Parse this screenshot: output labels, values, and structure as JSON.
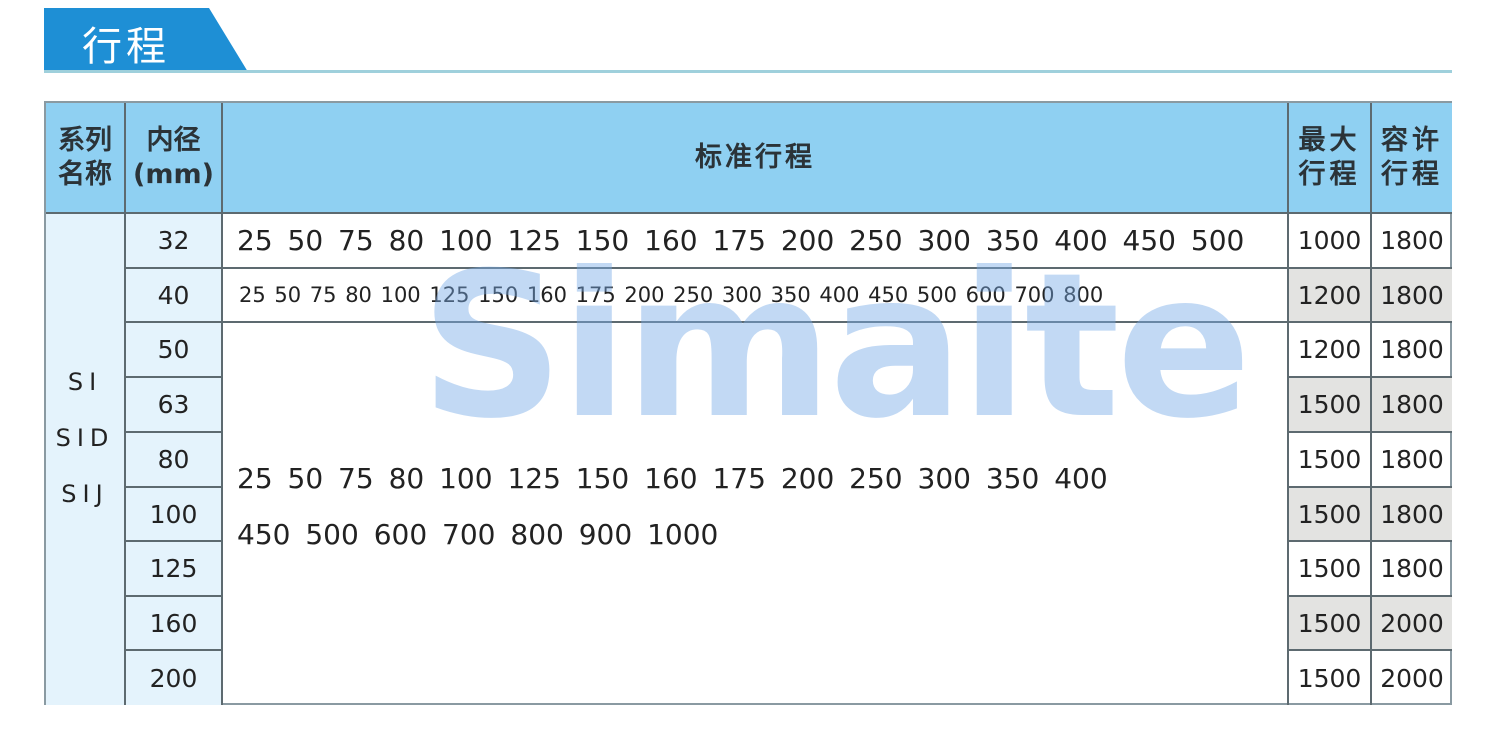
{
  "section_title": "行程",
  "watermark_logo": "Simaite",
  "headers": {
    "series": "系列名称",
    "bore": "内径(mm)",
    "standard_stroke": "标准行程",
    "max_stroke": "最大行程",
    "allowable_stroke": "容许行程"
  },
  "series_names": [
    "SI",
    "SID",
    "SIJ"
  ],
  "rows": [
    {
      "bore": "32",
      "max": "1000",
      "allow": "1800"
    },
    {
      "bore": "40",
      "max": "1200",
      "allow": "1800"
    },
    {
      "bore": "50",
      "max": "1200",
      "allow": "1800"
    },
    {
      "bore": "63",
      "max": "1500",
      "allow": "1800"
    },
    {
      "bore": "80",
      "max": "1500",
      "allow": "1800"
    },
    {
      "bore": "100",
      "max": "1500",
      "allow": "1800"
    },
    {
      "bore": "125",
      "max": "1500",
      "allow": "1800"
    },
    {
      "bore": "160",
      "max": "1500",
      "allow": "2000"
    },
    {
      "bore": "200",
      "max": "1500",
      "allow": "2000"
    }
  ],
  "strokes": {
    "bore_32": "25 50 75 80 100 125 150 160 175 200 250 300 350 400 450 500",
    "bore_40": "25 50 75 80 100 125 150 160 175 200 250 300 350 400 450 500 600 700 800",
    "bore_50_200_line1": "25 50 75 80 100 125 150 160 175 200 250 300 350 400",
    "bore_50_200_line2": "450 500 600 700 800 900 1000"
  }
}
